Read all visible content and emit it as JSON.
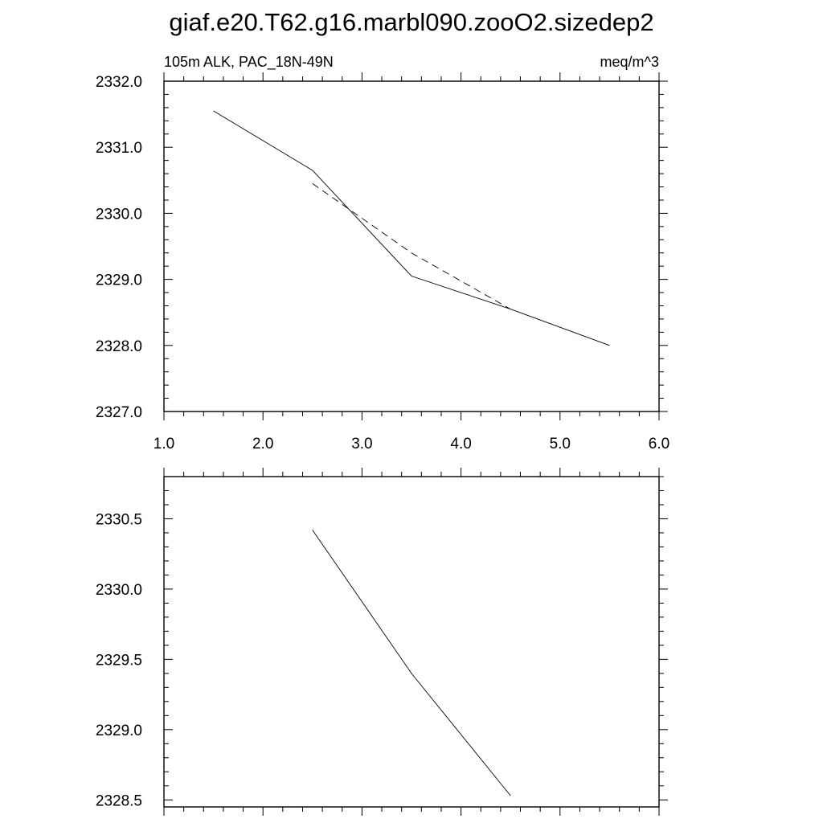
{
  "title": "giaf.e20.T62.g16.marbl090.zooO2.sizedep2",
  "chart_data": [
    {
      "type": "line",
      "left_label": "105m ALK, PAC_18N-49N",
      "right_label": "meq/m^3",
      "xlim": [
        1.0,
        6.0
      ],
      "ylim": [
        2327.0,
        2332.0
      ],
      "x_ticks": [
        "1.0",
        "2.0",
        "3.0",
        "4.0",
        "5.0",
        "6.0"
      ],
      "y_ticks": [
        "2327.0",
        "2328.0",
        "2329.0",
        "2330.0",
        "2331.0",
        "2332.0"
      ],
      "grid": false,
      "series": [
        {
          "style": "solid",
          "x": [
            1.5,
            2.5,
            3.5,
            4.5,
            5.5
          ],
          "y": [
            2331.55,
            2330.65,
            2329.05,
            2328.55,
            2328.0
          ]
        },
        {
          "style": "dashed",
          "x": [
            2.5,
            3.5,
            4.5
          ],
          "y": [
            2330.45,
            2329.4,
            2328.55
          ]
        }
      ]
    },
    {
      "type": "line",
      "xlim": [
        1.0,
        6.0
      ],
      "ylim": [
        2328.45,
        2330.8
      ],
      "x_ticks": [],
      "y_ticks": [
        "2328.5",
        "2329.0",
        "2329.5",
        "2330.0",
        "2330.5"
      ],
      "grid": false,
      "series": [
        {
          "style": "solid",
          "x": [
            2.5,
            3.5,
            4.5
          ],
          "y": [
            2330.42,
            2329.4,
            2328.53
          ]
        }
      ]
    }
  ]
}
